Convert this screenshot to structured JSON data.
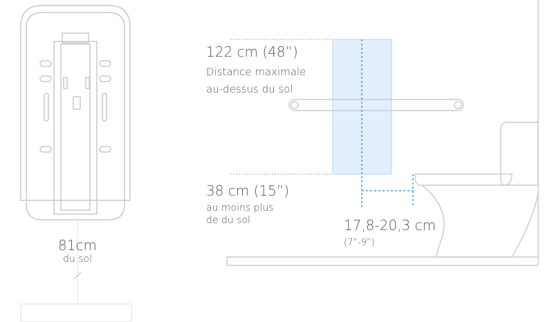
{
  "dispenser": {
    "height": "81cm",
    "note": "du sol"
  },
  "max_height": {
    "value": "122 cm (48”)",
    "line1": "Distance maximale",
    "line2": "au-dessus du sol"
  },
  "min_height": {
    "value": "38 cm (15”)",
    "line1": "au moins plus",
    "line2": "de du sol"
  },
  "offset": {
    "value": "17,8-20,3 cm",
    "inches": "(7”-9”)"
  }
}
